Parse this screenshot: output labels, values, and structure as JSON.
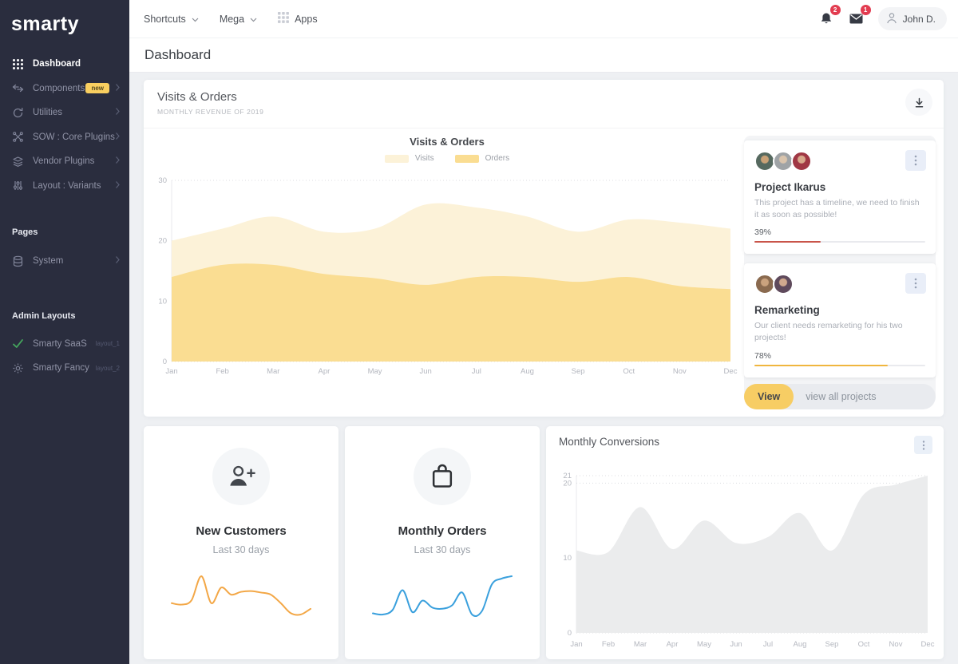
{
  "sidebar": {
    "logo": "smarty",
    "menu": [
      {
        "label": "Dashboard",
        "icon": "grid-icon",
        "active": true
      },
      {
        "label": "Components",
        "icon": "arrows-icon",
        "badge": "new"
      },
      {
        "label": "Utilities",
        "icon": "refresh-icon"
      },
      {
        "label": "SOW : Core Plugins",
        "icon": "nodes-icon"
      },
      {
        "label": "Vendor Plugins",
        "icon": "layers-icon"
      },
      {
        "label": "Layout : Variants",
        "icon": "sliders-icon"
      }
    ],
    "sections": [
      {
        "title": "Pages",
        "items": [
          {
            "label": "System",
            "icon": "database-icon"
          }
        ]
      },
      {
        "title": "Admin Layouts",
        "items": [
          {
            "label": "Smarty SaaS",
            "icon": "check-icon",
            "meta": "layout_1"
          },
          {
            "label": "Smarty Fancy",
            "icon": "gear-icon",
            "meta": "layout_2"
          }
        ]
      }
    ]
  },
  "topbar": {
    "shortcuts": "Shortcuts",
    "mega": "Mega",
    "apps": "Apps",
    "notif_count": "2",
    "mail_count": "1",
    "user": "John D."
  },
  "page": {
    "title": "Dashboard"
  },
  "visits_card": {
    "title": "Visits & Orders",
    "subtitle": "MONTHLY REVENUE OF 2019",
    "chart_title": "Visits & Orders"
  },
  "projects_panel": {
    "cards": [
      {
        "title": "Project Ikarus",
        "desc": "This project has a timeline, we need to finish it as soon as possible!",
        "percent": "39%",
        "value": 39,
        "color": "#c9544a",
        "avatars": [
          [
            "#56695f",
            "#c9a176"
          ],
          [
            "#9fa3a6",
            "#d9c4ad"
          ],
          [
            "#a03744",
            "#d9a98c"
          ]
        ]
      },
      {
        "title": "Remarketing",
        "desc": "Our client needs remarketing for his two projects!",
        "percent": "78%",
        "value": 78,
        "color": "#f0b63f",
        "avatars": [
          [
            "#8a6a4f",
            "#caa27e"
          ],
          [
            "#5f4a5c",
            "#d1a98e"
          ]
        ]
      }
    ],
    "view_button": "View",
    "view_all": "view all projects"
  },
  "stat_cards": [
    {
      "title": "New Customers",
      "subtitle": "Last 30 days",
      "icon": "person-plus-icon"
    },
    {
      "title": "Monthly Orders",
      "subtitle": "Last 30 days",
      "icon": "bag-icon"
    }
  ],
  "conversions_card": {
    "title": "Monthly Conversions"
  },
  "chart_data": [
    {
      "id": "visits-orders",
      "type": "area",
      "title": "Visits & Orders",
      "subtitle": "MONTHLY REVENUE OF 2019",
      "categories": [
        "Jan",
        "Feb",
        "Mar",
        "Apr",
        "May",
        "Jun",
        "Jul",
        "Aug",
        "Sep",
        "Oct",
        "Nov",
        "Dec"
      ],
      "series": [
        {
          "name": "Visits",
          "color": "#fcf2d8",
          "values": [
            20,
            22,
            24,
            21.5,
            22,
            26,
            25.5,
            24,
            21.5,
            23.5,
            23,
            22
          ]
        },
        {
          "name": "Orders",
          "color": "#fadd92",
          "values": [
            14,
            16,
            16,
            14.5,
            13.8,
            12.7,
            14,
            14,
            13.2,
            14,
            12.5,
            12
          ]
        }
      ],
      "ylim": [
        0,
        30
      ],
      "yticks": [
        0,
        10,
        20,
        30
      ],
      "grid": "dotted",
      "legend": "top-center"
    },
    {
      "id": "monthly-conversions",
      "type": "area",
      "title": "Monthly Conversions",
      "categories": [
        "Jan",
        "Feb",
        "Mar",
        "Apr",
        "May",
        "Jun",
        "Jul",
        "Aug",
        "Sep",
        "Oct",
        "Nov",
        "Dec"
      ],
      "series": [
        {
          "name": "Conversions",
          "color": "#ebeced",
          "values": [
            11,
            10.8,
            16.8,
            11.2,
            15,
            12,
            12.8,
            16,
            11,
            18.5,
            19.8,
            21
          ]
        }
      ],
      "ylim": [
        0,
        21
      ],
      "yticks": [
        0,
        10,
        20,
        21
      ],
      "grid": "dotted",
      "legend": "none"
    },
    {
      "id": "new-customers-sparkline",
      "type": "line",
      "color": "#f3a746",
      "values": [
        3.0,
        2.8,
        3.4,
        6.8,
        3.0,
        5.2,
        4.2,
        4.6,
        4.7,
        4.5,
        4.2,
        3.0,
        1.6,
        1.4,
        2.2
      ]
    },
    {
      "id": "monthly-orders-sparkline",
      "type": "line",
      "color": "#3aa0dd",
      "values": [
        2.6,
        2.4,
        3.2,
        6.6,
        2.8,
        4.8,
        3.6,
        3.4,
        4.0,
        6.2,
        2.4,
        3.0,
        7.6,
        8.6,
        9.0
      ]
    }
  ]
}
